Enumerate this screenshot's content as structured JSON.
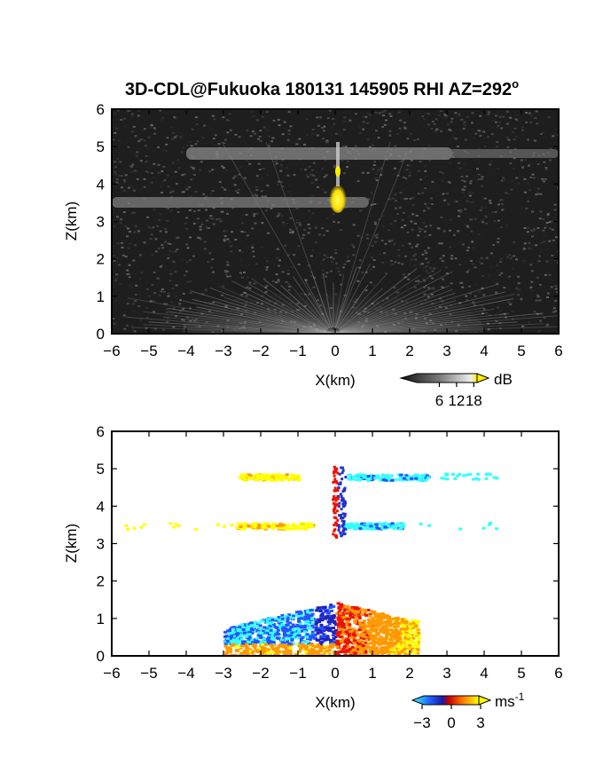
{
  "title": "3D-CDL@Fukuoka 180131 145905 RHI AZ=292",
  "title_sup": "o",
  "chart_data": [
    {
      "type": "heatmap",
      "name": "intensity",
      "xlabel": "X(km)",
      "ylabel": "Z(km)",
      "xlim": [
        -6,
        6
      ],
      "ylim": [
        0,
        6
      ],
      "x_ticks": [
        "-6",
        "-5",
        "-4",
        "-3",
        "-2",
        "-1",
        "0",
        "1",
        "2",
        "3",
        "4",
        "5",
        "6"
      ],
      "y_ticks": [
        "0",
        "1",
        "2",
        "3",
        "4",
        "5",
        "6"
      ],
      "colorbar": {
        "unit": "dB",
        "ticks": [
          "6",
          "12",
          "18"
        ],
        "range": [
          0,
          21
        ]
      },
      "features": [
        {
          "label": "layer",
          "z_km": 4.8,
          "x_from": -3.8,
          "x_to": 6.0,
          "level_db": 10
        },
        {
          "label": "layer",
          "z_km": 3.5,
          "x_from": -6.0,
          "x_to": 1.0,
          "level_db": 10
        },
        {
          "label": "plume",
          "x_km": 0.1,
          "z_km": 3.5,
          "level_db": 20
        },
        {
          "label": "boundary layer",
          "z_km": 0.0,
          "z_to": 1.4,
          "x_from": -4.0,
          "x_to": 4.0,
          "level_db": 12
        }
      ]
    },
    {
      "type": "heatmap",
      "name": "doppler velocity",
      "xlabel": "X(km)",
      "ylabel": "Z(km)",
      "xlim": [
        -6,
        6
      ],
      "ylim": [
        0,
        6
      ],
      "x_ticks": [
        "-6",
        "-5",
        "-4",
        "-3",
        "-2",
        "-1",
        "0",
        "1",
        "2",
        "3",
        "4",
        "5",
        "6"
      ],
      "y_ticks": [
        "0",
        "1",
        "2",
        "3",
        "4",
        "5",
        "6"
      ],
      "colorbar": {
        "unit": "ms",
        "unit_sup": "-1",
        "ticks": [
          "-3",
          "0",
          "3"
        ],
        "range": [
          -4,
          4
        ]
      },
      "features": [
        {
          "label": "upper layer west",
          "z_km": 4.8,
          "x_from": -2.6,
          "x_to": -1.0,
          "velocity": 3.5
        },
        {
          "label": "upper layer east",
          "z_km": 4.8,
          "x_from": 0.3,
          "x_to": 2.5,
          "velocity": -3.5
        },
        {
          "label": "mid layer west",
          "z_km": 3.5,
          "x_from": -2.7,
          "x_to": -0.6,
          "velocity": 3.5
        },
        {
          "label": "mid layer east",
          "z_km": 3.5,
          "x_from": 0.2,
          "x_to": 1.8,
          "velocity": -3.5
        },
        {
          "label": "boundary west",
          "z_km": 0.6,
          "x_from": -3.0,
          "x_to": 0.0,
          "velocity": -2.5
        },
        {
          "label": "boundary east",
          "z_km": 0.8,
          "x_from": 0.0,
          "x_to": 2.2,
          "velocity": 2.0
        }
      ]
    }
  ],
  "colors": {
    "bg_dark": "#1e1e1e",
    "plume": "#ffee00",
    "vel_yellow": "#ffff00",
    "vel_cyan": "#33ffff",
    "vel_blue": "#2255ff",
    "vel_red": "#ee1100",
    "vel_orange": "#ff9900"
  }
}
